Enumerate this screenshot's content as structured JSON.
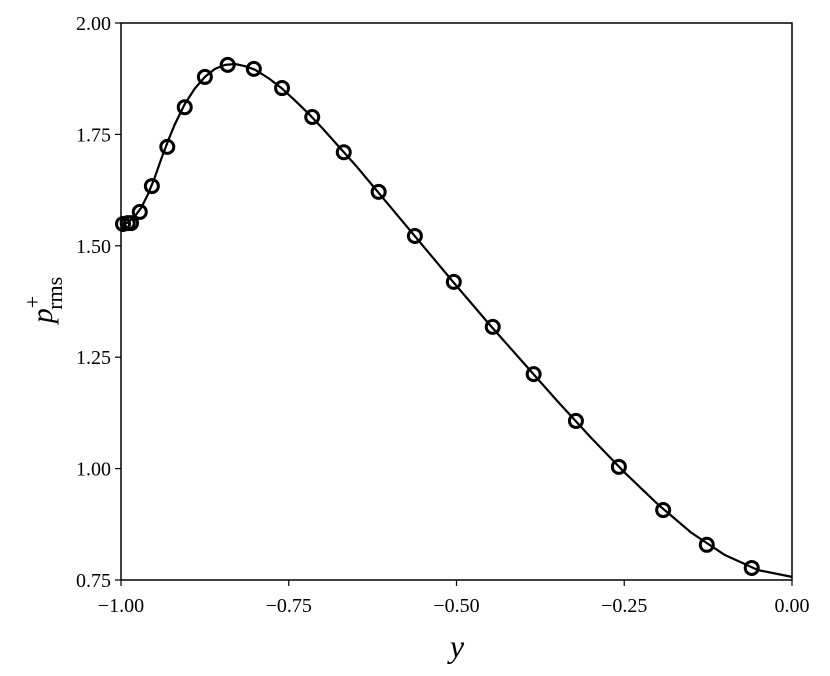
{
  "chart_data": {
    "type": "line",
    "xlabel": "y",
    "ylabel": {
      "base": "p",
      "sup": "+",
      "sub": "rms"
    },
    "xlim": [
      -1.0,
      0.0
    ],
    "ylim": [
      0.75,
      2.0
    ],
    "xticks": [
      {
        "value": -1.0,
        "label": "−1.00"
      },
      {
        "value": -0.75,
        "label": "−0.75"
      },
      {
        "value": -0.5,
        "label": "−0.50"
      },
      {
        "value": -0.25,
        "label": "−0.25"
      },
      {
        "value": 0.0,
        "label": "0.00"
      }
    ],
    "yticks": [
      {
        "value": 0.75,
        "label": "0.75"
      },
      {
        "value": 1.0,
        "label": "1.00"
      },
      {
        "value": 1.25,
        "label": "1.25"
      },
      {
        "value": 1.5,
        "label": "1.50"
      },
      {
        "value": 1.75,
        "label": "1.75"
      },
      {
        "value": 2.0,
        "label": "2.00"
      }
    ],
    "grid": false,
    "series": [
      {
        "color": "#000000",
        "marker": "none",
        "x": [
          -1.0,
          -0.99,
          -0.98,
          -0.97,
          -0.96,
          -0.95,
          -0.94,
          -0.93,
          -0.92,
          -0.905,
          -0.89,
          -0.875,
          -0.86,
          -0.845,
          -0.83,
          -0.815,
          -0.8,
          -0.78,
          -0.76,
          -0.74,
          -0.72,
          -0.7,
          -0.65,
          -0.6,
          -0.55,
          -0.5,
          -0.45,
          -0.4,
          -0.35,
          -0.3,
          -0.25,
          -0.2,
          -0.15,
          -0.1,
          -0.05,
          0.0
        ],
        "values": [
          1.547,
          1.552,
          1.565,
          1.585,
          1.615,
          1.652,
          1.695,
          1.735,
          1.772,
          1.818,
          1.853,
          1.879,
          1.897,
          1.906,
          1.908,
          1.903,
          1.895,
          1.876,
          1.853,
          1.825,
          1.796,
          1.764,
          1.68,
          1.59,
          1.5,
          1.41,
          1.322,
          1.237,
          1.152,
          1.07,
          0.992,
          0.92,
          0.856,
          0.806,
          0.772,
          0.757
        ]
      },
      {
        "color": "#000000",
        "marker": "circle",
        "x": [
          -0.997,
          -0.99,
          -0.985,
          -0.972,
          -0.954,
          -0.931,
          -0.905,
          -0.875,
          -0.841,
          -0.802,
          -0.76,
          -0.715,
          -0.668,
          -0.616,
          -0.562,
          -0.504,
          -0.446,
          -0.385,
          -0.322,
          -0.258,
          -0.192,
          -0.127,
          -0.06
        ],
        "values": [
          1.549,
          1.551,
          1.551,
          1.576,
          1.634,
          1.722,
          1.811,
          1.879,
          1.906,
          1.897,
          1.854,
          1.789,
          1.71,
          1.621,
          1.522,
          1.419,
          1.318,
          1.212,
          1.107,
          1.004,
          0.907,
          0.829,
          0.777
        ]
      }
    ]
  }
}
